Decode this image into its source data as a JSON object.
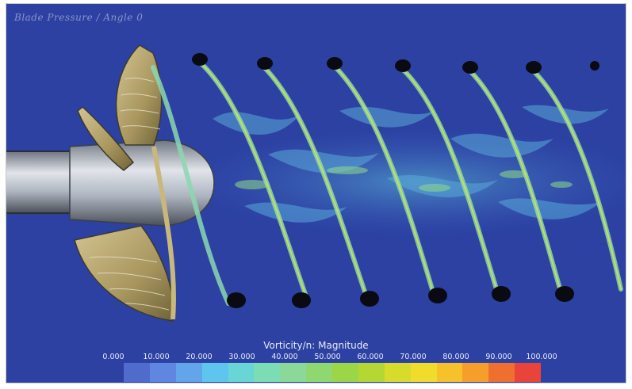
{
  "scene": {
    "overlay_label": "Blade Pressure / Angle 0",
    "background_color": "#2a3f9c",
    "propeller_color": "#b6a46c",
    "hub_color": "#b9bfc8",
    "vortex_color": "#7fd6b6"
  },
  "colorbar": {
    "title": "Vorticity/n: Magnitude",
    "ticks": [
      "0.000",
      "10.000",
      "20.000",
      "30.000",
      "40.000",
      "50.000",
      "60.000",
      "70.000",
      "80.000",
      "90.000",
      "100.000"
    ],
    "colors": [
      "#4f6ccd",
      "#5f86e0",
      "#62a5ea",
      "#5ec6ee",
      "#68d6d4",
      "#7cdcb4",
      "#8ad998",
      "#8fd870",
      "#9bd648",
      "#b5d733",
      "#d7dc2c",
      "#f0dc2a",
      "#f6c22c",
      "#f59e2c",
      "#ef6f2e",
      "#e8443a"
    ]
  }
}
